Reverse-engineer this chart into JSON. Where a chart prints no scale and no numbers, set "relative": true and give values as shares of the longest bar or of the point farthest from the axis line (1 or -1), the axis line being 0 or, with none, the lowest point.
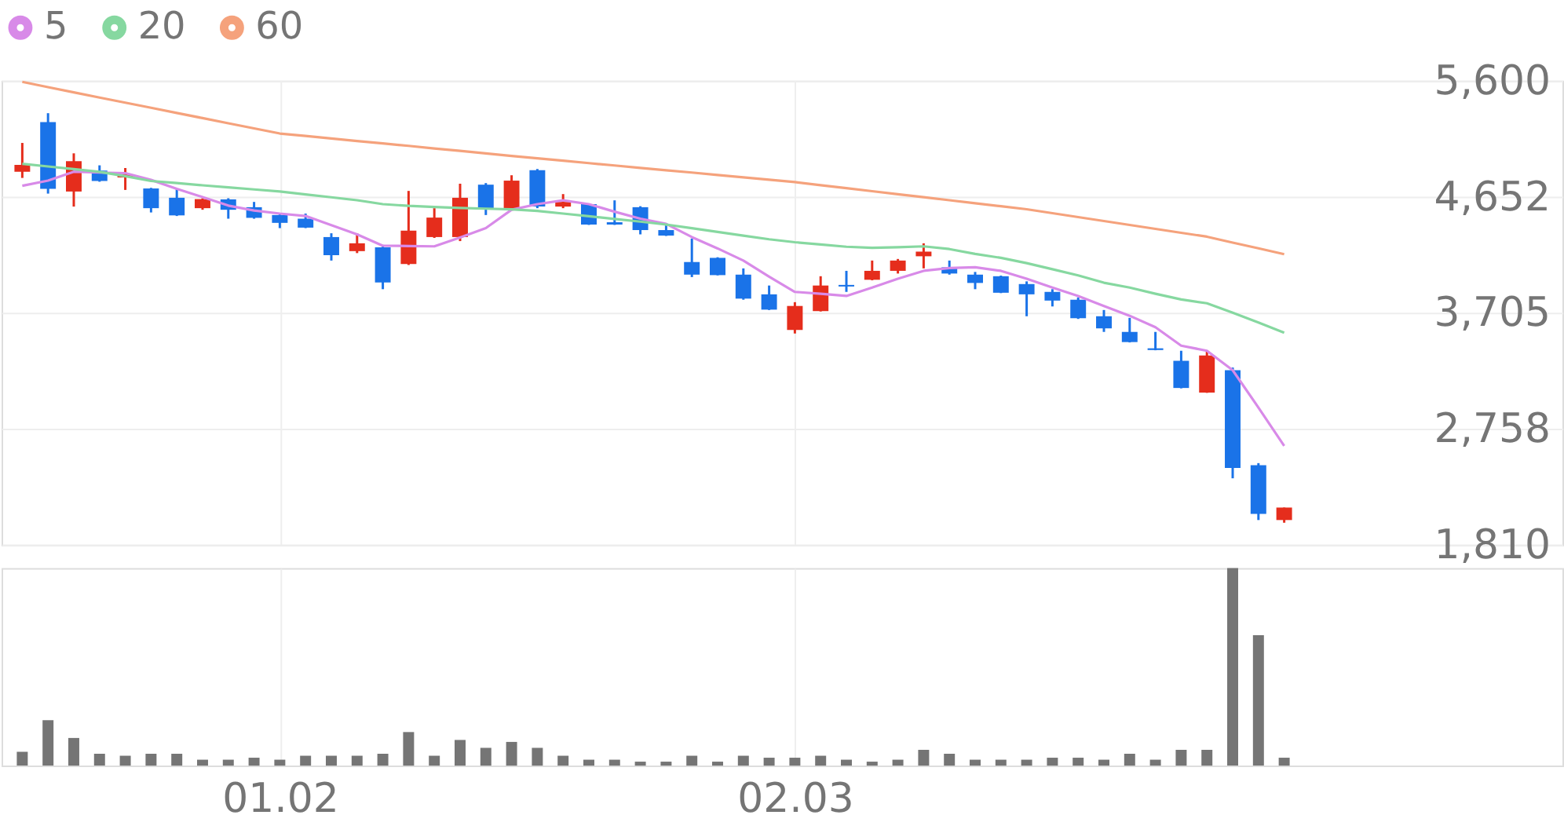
{
  "chart_data": [
    {
      "type": "candlestick",
      "categories": [
        null,
        null,
        null,
        null,
        null,
        null,
        null,
        null,
        null,
        null,
        "01.02",
        null,
        null,
        null,
        null,
        null,
        null,
        null,
        null,
        null,
        null,
        null,
        null,
        null,
        null,
        null,
        null,
        null,
        null,
        null,
        "02.03",
        null,
        null,
        null,
        null,
        null,
        null,
        null,
        null,
        null,
        null,
        null,
        null,
        null,
        null,
        null,
        null,
        null,
        null,
        null
      ],
      "ohlc": [
        [
          4857,
          5092,
          4806,
          4912
        ],
        [
          5263,
          5335,
          4678,
          4717
        ],
        [
          4695,
          5007,
          4572,
          4943
        ],
        [
          4866,
          4909,
          4775,
          4781
        ],
        [
          4810,
          4887,
          4708,
          4836
        ],
        [
          4720,
          4725,
          4524,
          4559
        ],
        [
          4644,
          4717,
          4495,
          4500
        ],
        [
          4559,
          4640,
          4546,
          4633
        ],
        [
          4631,
          4640,
          4473,
          4546
        ],
        [
          4567,
          4610,
          4473,
          4480
        ],
        [
          4503,
          4510,
          4396,
          4439
        ],
        [
          4473,
          4515,
          4396,
          4400
        ],
        [
          4323,
          4354,
          4131,
          4175
        ],
        [
          4208,
          4354,
          4192,
          4272
        ],
        [
          4239,
          4259,
          3897,
          3952
        ],
        [
          4102,
          4700,
          4095,
          4375
        ],
        [
          4323,
          4559,
          4316,
          4482
        ],
        [
          4323,
          4759,
          4290,
          4644
        ],
        [
          4751,
          4764,
          4503,
          4559
        ],
        [
          4546,
          4828,
          4540,
          4784
        ],
        [
          4870,
          4879,
          4559,
          4572
        ],
        [
          4572,
          4674,
          4559,
          4610
        ],
        [
          4592,
          4597,
          4422,
          4425
        ],
        [
          4444,
          4623,
          4422,
          4425
        ],
        [
          4567,
          4575,
          4345,
          4380
        ],
        [
          4380,
          4418,
          4332,
          4335
        ],
        [
          4119,
          4311,
          3996,
          4016
        ],
        [
          4153,
          4158,
          4010,
          4012
        ],
        [
          4016,
          4067,
          3811,
          3820
        ],
        [
          3855,
          3927,
          3727,
          3730
        ],
        [
          3564,
          3791,
          3535,
          3760
        ],
        [
          3718,
          4003,
          3715,
          3927
        ],
        [
          3932,
          4047,
          3875,
          3919
        ],
        [
          3974,
          4131,
          3970,
          4047
        ],
        [
          4047,
          4144,
          4025,
          4131
        ],
        [
          4166,
          4272,
          4067,
          4204
        ],
        [
          4076,
          4131,
          4016,
          4025
        ],
        [
          4016,
          4038,
          3897,
          3948
        ],
        [
          4003,
          4008,
          3865,
          3868
        ],
        [
          3939,
          3961,
          3676,
          3855
        ],
        [
          3875,
          3897,
          3756,
          3804
        ],
        [
          3811,
          3830,
          3654,
          3660
        ],
        [
          3676,
          3727,
          3548,
          3577
        ],
        [
          3548,
          3663,
          3462,
          3465
        ],
        [
          3414,
          3548,
          3398,
          3400
        ],
        [
          3312,
          3394,
          3087,
          3090
        ],
        [
          3052,
          3398,
          3050,
          3355
        ],
        [
          3235,
          3257,
          2352,
          2437
        ],
        [
          2459,
          2476,
          2011,
          2062
        ],
        [
          2011,
          2113,
          1989,
          2113
        ]
      ],
      "colors": [
        "#e52d1c",
        "#1a73e8",
        "#e52d1c",
        "#1a73e8",
        "#e52d1c",
        "#1a73e8",
        "#1a73e8",
        "#e52d1c",
        "#1a73e8",
        "#1a73e8",
        "#1a73e8",
        "#1a73e8",
        "#1a73e8",
        "#e52d1c",
        "#1a73e8",
        "#e52d1c",
        "#e52d1c",
        "#e52d1c",
        "#1a73e8",
        "#e52d1c",
        "#1a73e8",
        "#e52d1c",
        "#1a73e8",
        "#1a73e8",
        "#1a73e8",
        "#1a73e8",
        "#1a73e8",
        "#1a73e8",
        "#1a73e8",
        "#1a73e8",
        "#e52d1c",
        "#e52d1c",
        "#1a73e8",
        "#e52d1c",
        "#e52d1c",
        "#e52d1c",
        "#1a73e8",
        "#1a73e8",
        "#1a73e8",
        "#1a73e8",
        "#1a73e8",
        "#1a73e8",
        "#1a73e8",
        "#1a73e8",
        "#1a73e8",
        "#1a73e8",
        "#e52d1c",
        "#1a73e8",
        "#1a73e8",
        "#e52d1c"
      ],
      "series": [
        {
          "name": "5",
          "type": "line",
          "color": "#d88ae8",
          "values": [
            4742,
            4784,
            4857,
            4850,
            4845,
            4790,
            4717,
            4650,
            4580,
            4540,
            4515,
            4495,
            4420,
            4345,
            4252,
            4250,
            4247,
            4320,
            4396,
            4546,
            4592,
            4623,
            4592,
            4530,
            4473,
            4431,
            4323,
            4230,
            4131,
            4000,
            3875,
            3860,
            3842,
            3910,
            3983,
            4047,
            4070,
            4076,
            4047,
            3983,
            3910,
            3842,
            3760,
            3680,
            3586,
            3436,
            3394,
            3235,
            2930,
            2617
          ]
        },
        {
          "name": "20",
          "type": "line",
          "color": "#86d8a0",
          "values": [
            4921,
            4900,
            4878,
            4856,
            4820,
            4781,
            4764,
            4746,
            4729,
            4712,
            4695,
            4671,
            4648,
            4624,
            4592,
            4578,
            4569,
            4561,
            4555,
            4550,
            4537,
            4515,
            4493,
            4471,
            4449,
            4425,
            4395,
            4365,
            4335,
            4305,
            4281,
            4262,
            4244,
            4235,
            4240,
            4247,
            4225,
            4185,
            4153,
            4110,
            4060,
            4010,
            3950,
            3910,
            3860,
            3813,
            3782,
            3705,
            3625,
            3542
          ]
        },
        {
          "name": "60",
          "type": "line",
          "color": "#f5a27c",
          "values": [
            5591,
            5548,
            5505,
            5463,
            5421,
            5379,
            5337,
            5295,
            5253,
            5211,
            5169,
            5149,
            5128,
            5108,
            5088,
            5068,
            5047,
            5027,
            5007,
            4986,
            4966,
            4947,
            4927,
            4908,
            4888,
            4869,
            4850,
            4830,
            4811,
            4791,
            4772,
            4747,
            4723,
            4698,
            4673,
            4649,
            4624,
            4599,
            4575,
            4550,
            4518,
            4486,
            4454,
            4422,
            4390,
            4358,
            4326,
            4278,
            4231,
            4183
          ]
        }
      ],
      "ylim": [
        1810,
        5600
      ],
      "yticks": [
        {
          "value": 1810,
          "label": "1,810"
        },
        {
          "value": 2757.5,
          "label": "2,758"
        },
        {
          "value": 3705,
          "label": "3,705"
        },
        {
          "value": 4652.5,
          "label": "4,652"
        },
        {
          "value": 5600,
          "label": "5,600"
        }
      ],
      "grid": true,
      "legend": "top left",
      "tick_labels": "y"
    },
    {
      "type": "bar",
      "categories": [
        null,
        null,
        null,
        null,
        null,
        null,
        null,
        null,
        null,
        null,
        "01.02",
        null,
        null,
        null,
        null,
        null,
        null,
        null,
        null,
        null,
        null,
        null,
        null,
        null,
        null,
        null,
        null,
        null,
        null,
        null,
        "02.03",
        null,
        null,
        null,
        null,
        null,
        null,
        null,
        null,
        null,
        null,
        null,
        null,
        null,
        null,
        null,
        null,
        null,
        null,
        null
      ],
      "values": [
        0.07,
        0.23,
        0.14,
        0.06,
        0.05,
        0.06,
        0.06,
        0.03,
        0.03,
        0.04,
        0.03,
        0.05,
        0.05,
        0.05,
        0.06,
        0.17,
        0.05,
        0.13,
        0.09,
        0.12,
        0.09,
        0.05,
        0.03,
        0.03,
        0.02,
        0.02,
        0.05,
        0.02,
        0.05,
        0.04,
        0.04,
        0.05,
        0.03,
        0.02,
        0.03,
        0.08,
        0.06,
        0.03,
        0.03,
        0.03,
        0.04,
        0.04,
        0.03,
        0.06,
        0.03,
        0.08,
        0.08,
        1,
        0.66,
        0.04
      ],
      "color": "#757575",
      "relative": true,
      "grid": "x",
      "tick_labels": "x"
    }
  ]
}
